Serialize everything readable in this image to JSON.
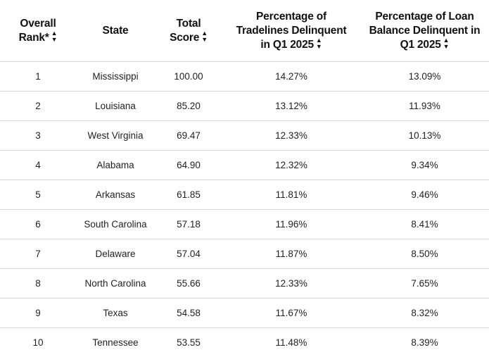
{
  "table": {
    "headers": {
      "rank": [
        "Overall",
        "Rank*"
      ],
      "state": [
        "State"
      ],
      "score": [
        "Total",
        "Score"
      ],
      "tradelines": [
        "Percentage of",
        "Tradelines Delinquent",
        "in Q1 2025"
      ],
      "loan": [
        "Percentage of Loan",
        "Balance Delinquent in",
        "Q1 2025"
      ]
    },
    "sort_icon": "sort-arrows-icon",
    "rows": [
      {
        "rank": "1",
        "state": "Mississippi",
        "score": "100.00",
        "tradelines": "14.27%",
        "loan": "13.09%"
      },
      {
        "rank": "2",
        "state": "Louisiana",
        "score": "85.20",
        "tradelines": "13.12%",
        "loan": "11.93%"
      },
      {
        "rank": "3",
        "state": "West Virginia",
        "score": "69.47",
        "tradelines": "12.33%",
        "loan": "10.13%"
      },
      {
        "rank": "4",
        "state": "Alabama",
        "score": "64.90",
        "tradelines": "12.32%",
        "loan": "9.34%"
      },
      {
        "rank": "5",
        "state": "Arkansas",
        "score": "61.85",
        "tradelines": "11.81%",
        "loan": "9.46%"
      },
      {
        "rank": "6",
        "state": "South Carolina",
        "score": "57.18",
        "tradelines": "11.96%",
        "loan": "8.41%"
      },
      {
        "rank": "7",
        "state": "Delaware",
        "score": "57.04",
        "tradelines": "11.87%",
        "loan": "8.50%"
      },
      {
        "rank": "8",
        "state": "North Carolina",
        "score": "55.66",
        "tradelines": "12.33%",
        "loan": "7.65%"
      },
      {
        "rank": "9",
        "state": "Texas",
        "score": "54.58",
        "tradelines": "11.67%",
        "loan": "8.32%"
      },
      {
        "rank": "10",
        "state": "Tennessee",
        "score": "53.55",
        "tradelines": "11.48%",
        "loan": "8.39%"
      }
    ]
  }
}
